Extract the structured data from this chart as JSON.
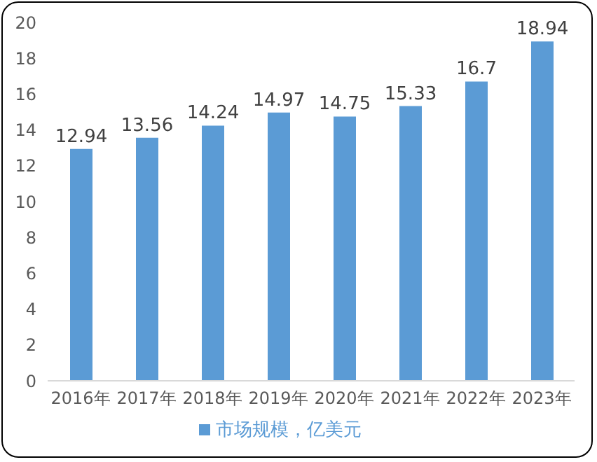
{
  "chart_data": {
    "type": "bar",
    "categories": [
      "2016年",
      "2017年",
      "2018年",
      "2019年",
      "2020年",
      "2021年",
      "2022年",
      "2023年"
    ],
    "series": [
      {
        "name": "市场规模，亿美元",
        "color": "#5b9bd5",
        "values": [
          12.94,
          13.56,
          14.24,
          14.97,
          14.75,
          15.33,
          16.7,
          18.94
        ]
      }
    ],
    "ylim": [
      0,
      20
    ],
    "yticks": [
      0,
      2,
      4,
      6,
      8,
      10,
      12,
      14,
      16,
      18,
      20
    ],
    "data_labels": true,
    "grid": false,
    "legend": "bottom"
  }
}
